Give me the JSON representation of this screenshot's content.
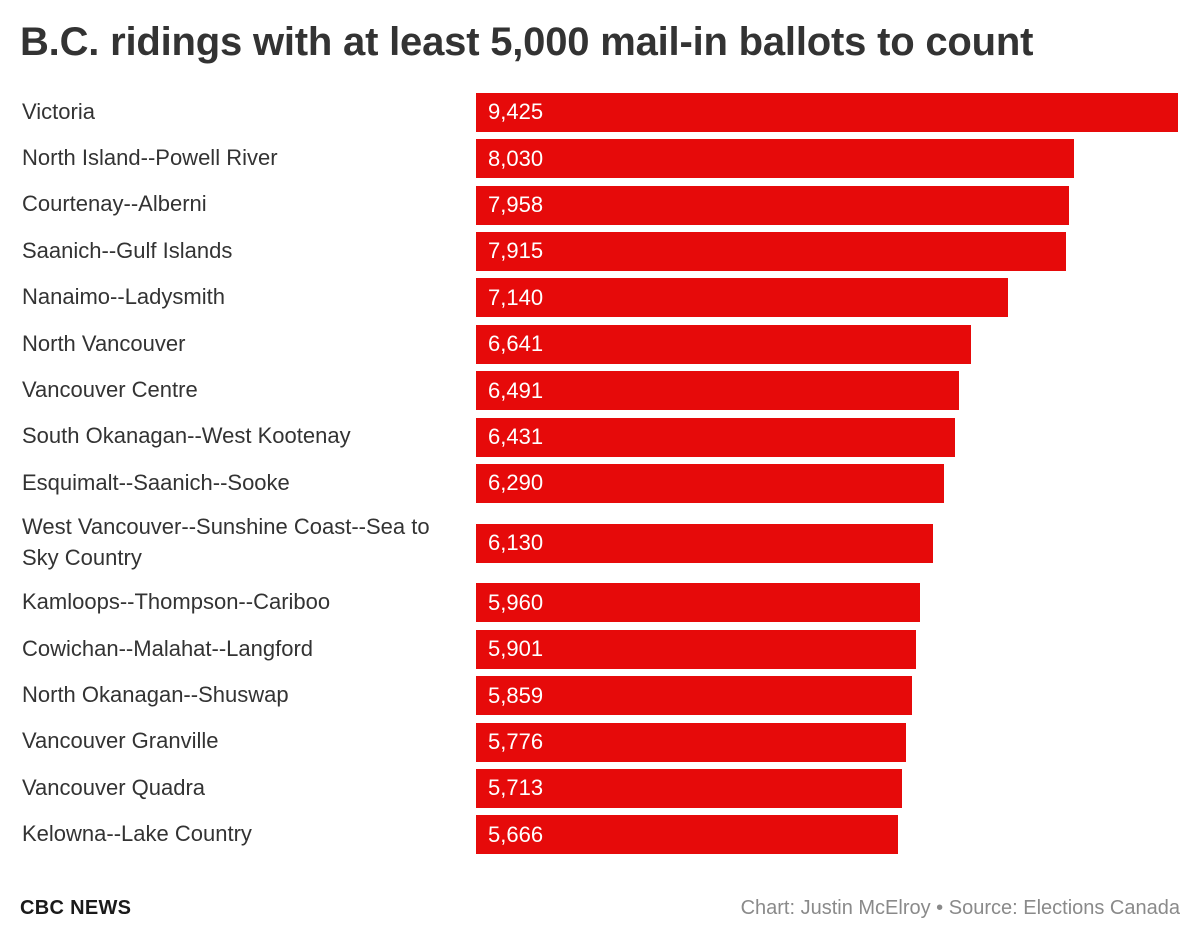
{
  "header": {
    "title": "B.C. ridings with at least 5,000 mail-in ballots to count"
  },
  "footer": {
    "brand": "CBC NEWS",
    "credit": "Chart: Justin McElroy • Source: Elections Canada"
  },
  "colors": {
    "bar": "#e60a0a",
    "text": "#333333",
    "credit": "#8a8a8a"
  },
  "chart_data": {
    "type": "bar",
    "orientation": "horizontal",
    "title": "B.C. ridings with at least 5,000 mail-in ballots to count",
    "categories": [
      "Victoria",
      "North Island--Powell River",
      "Courtenay--Alberni",
      "Saanich--Gulf Islands",
      "Nanaimo--Ladysmith",
      "North Vancouver",
      "Vancouver Centre",
      "South Okanagan--West Kootenay",
      "Esquimalt--Saanich--Sooke",
      "West Vancouver--Sunshine Coast--Sea to Sky Country",
      "Kamloops--Thompson--Cariboo",
      "Cowichan--Malahat--Langford",
      "North Okanagan--Shuswap",
      "Vancouver Granville",
      "Vancouver Quadra",
      "Kelowna--Lake Country"
    ],
    "values": [
      9425,
      8030,
      7958,
      7915,
      7140,
      6641,
      6491,
      6431,
      6290,
      6130,
      5960,
      5901,
      5859,
      5776,
      5713,
      5666
    ],
    "value_labels": [
      "9,425",
      "8,030",
      "7,958",
      "7,915",
      "7,140",
      "6,641",
      "6,491",
      "6,431",
      "6,290",
      "6,130",
      "5,960",
      "5,901",
      "5,859",
      "5,776",
      "5,713",
      "5,666"
    ],
    "xlim": [
      0,
      9425
    ],
    "grid": false,
    "legend": "none",
    "data_labels": "inside-left"
  }
}
